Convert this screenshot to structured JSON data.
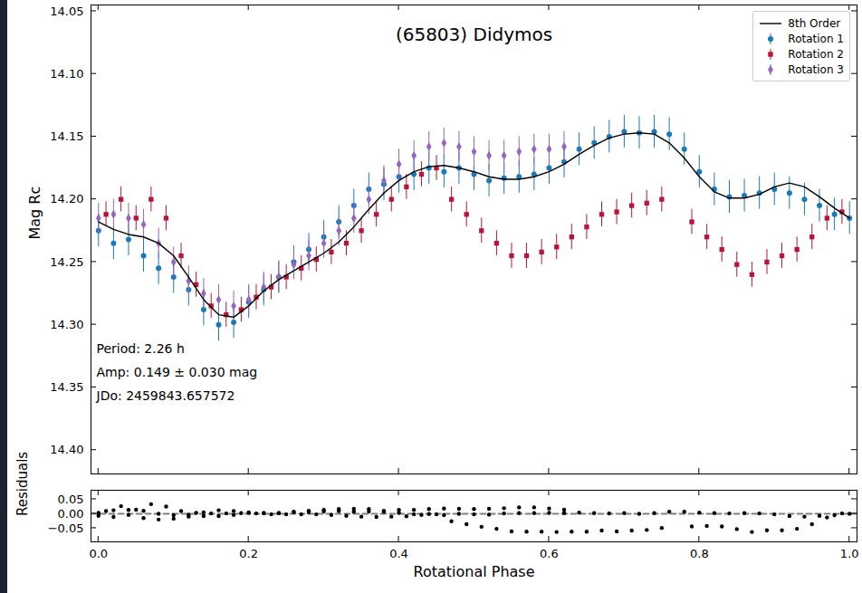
{
  "chart_data": [
    {
      "type": "scatter",
      "title": "(65803) Didymos",
      "ylabel": "Mag Rc",
      "xlim": [
        -0.01,
        1.01
      ],
      "ylim": [
        14.419,
        14.045
      ],
      "xticks": [
        {
          "value": 0,
          "label": "0.0"
        },
        0.2,
        0.4,
        0.6,
        0.8,
        {
          "value": 1,
          "label": "1.0"
        }
      ],
      "yticks": [
        14.05,
        {
          "value": 14.1,
          "label": "14.10"
        },
        14.15,
        {
          "value": 14.2,
          "label": "14.20"
        },
        14.25,
        {
          "value": 14.3,
          "label": "14.30"
        },
        14.35,
        {
          "value": 14.4,
          "label": "14.40"
        }
      ],
      "tick_labels": "y",
      "grid": false,
      "legend": "upper right",
      "annotations": [
        "Period: 2.26 h",
        "Amp: 0.149 ± 0.030 mag",
        "JDo: 2459843.657572"
      ],
      "series": [
        {
          "name": "8th Order",
          "type": "line",
          "line_style": "solid",
          "color": "#000000",
          "x": [
            0,
            0.02,
            0.04,
            0.06,
            0.08,
            0.1,
            0.12,
            0.14,
            0.16,
            0.18,
            0.2,
            0.22,
            0.24,
            0.26,
            0.28,
            0.3,
            0.32,
            0.34,
            0.36,
            0.38,
            0.4,
            0.42,
            0.44,
            0.46,
            0.48,
            0.5,
            0.52,
            0.54,
            0.56,
            0.58,
            0.6,
            0.62,
            0.64,
            0.66,
            0.68,
            0.7,
            0.72,
            0.74,
            0.76,
            0.78,
            0.8,
            0.82,
            0.84,
            0.86,
            0.88,
            0.9,
            0.92,
            0.94,
            0.96,
            0.98,
            1
          ],
          "values": [
            14.218,
            14.224,
            14.228,
            14.23,
            14.235,
            14.245,
            14.262,
            14.28,
            14.292,
            14.294,
            14.285,
            14.273,
            14.264,
            14.257,
            14.25,
            14.243,
            14.234,
            14.222,
            14.208,
            14.195,
            14.185,
            14.178,
            14.174,
            14.173,
            14.175,
            14.178,
            14.182,
            14.184,
            14.184,
            14.182,
            14.178,
            14.172,
            14.164,
            14.157,
            14.151,
            14.148,
            14.147,
            14.148,
            14.155,
            14.167,
            14.182,
            14.194,
            14.199,
            14.199,
            14.196,
            14.19,
            14.187,
            14.19,
            14.198,
            14.207,
            14.215
          ]
        },
        {
          "name": "Rotation 1",
          "type": "scatter",
          "marker": "circle",
          "color": "#1f77b4",
          "error": 0.013,
          "x": [
            0,
            0.02,
            0.04,
            0.06,
            0.08,
            0.1,
            0.12,
            0.14,
            0.16,
            0.18,
            0.2,
            0.22,
            0.24,
            0.26,
            0.28,
            0.3,
            0.32,
            0.34,
            0.36,
            0.38,
            0.4,
            0.42,
            0.44,
            0.46,
            0.48,
            0.5,
            0.52,
            0.54,
            0.56,
            0.58,
            0.6,
            0.62,
            0.64,
            0.66,
            0.68,
            0.7,
            0.72,
            0.74,
            0.76,
            0.78,
            0.8,
            0.82,
            0.84,
            0.86,
            0.88,
            0.9,
            0.92,
            0.94,
            0.96,
            0.98,
            1
          ],
          "values": [
            14.225,
            14.235,
            14.232,
            14.245,
            14.255,
            14.262,
            14.272,
            14.288,
            14.3,
            14.298,
            14.282,
            14.272,
            14.262,
            14.25,
            14.24,
            14.23,
            14.218,
            14.205,
            14.192,
            14.188,
            14.182,
            14.18,
            14.175,
            14.178,
            14.175,
            14.18,
            14.185,
            14.183,
            14.182,
            14.18,
            14.175,
            14.17,
            14.16,
            14.155,
            14.15,
            14.146,
            14.147,
            14.146,
            14.148,
            14.16,
            14.178,
            14.192,
            14.198,
            14.197,
            14.195,
            14.192,
            14.195,
            14.2,
            14.205,
            14.212,
            14.215
          ]
        },
        {
          "name": "Rotation 2",
          "type": "scatter",
          "marker": "square",
          "color": "#b5173c",
          "error": 0.01,
          "x": [
            0.01,
            0.03,
            0.05,
            0.07,
            0.09,
            0.11,
            0.13,
            0.15,
            0.17,
            0.19,
            0.21,
            0.23,
            0.25,
            0.27,
            0.29,
            0.31,
            0.33,
            0.35,
            0.37,
            0.39,
            0.41,
            0.43,
            0.45,
            0.47,
            0.49,
            0.51,
            0.53,
            0.55,
            0.57,
            0.59,
            0.61,
            0.63,
            0.65,
            0.67,
            0.69,
            0.71,
            0.73,
            0.75,
            0.79,
            0.81,
            0.83,
            0.85,
            0.87,
            0.89,
            0.91,
            0.93,
            0.95,
            0.97,
            0.99
          ],
          "values": [
            14.212,
            14.2,
            14.215,
            14.2,
            14.215,
            14.245,
            14.268,
            14.285,
            14.292,
            14.288,
            14.278,
            14.27,
            14.262,
            14.255,
            14.248,
            14.242,
            14.235,
            14.225,
            14.212,
            14.2,
            14.19,
            14.18,
            14.175,
            14.2,
            14.212,
            14.225,
            14.235,
            14.245,
            14.245,
            14.242,
            14.238,
            14.23,
            14.222,
            14.212,
            14.21,
            14.205,
            14.203,
            14.2,
            14.218,
            14.23,
            14.24,
            14.252,
            14.26,
            14.25,
            14.245,
            14.24,
            14.23,
            14.215,
            14.21
          ]
        },
        {
          "name": "Rotation 3",
          "type": "scatter",
          "marker": "diamond",
          "color": "#9467bd",
          "error": 0.012,
          "x": [
            0,
            0.02,
            0.04,
            0.06,
            0.08,
            0.1,
            0.12,
            0.14,
            0.16,
            0.18,
            0.2,
            0.22,
            0.24,
            0.26,
            0.28,
            0.3,
            0.32,
            0.34,
            0.36,
            0.38,
            0.4,
            0.42,
            0.44,
            0.46,
            0.48,
            0.5,
            0.52,
            0.54,
            0.56,
            0.58,
            0.6,
            0.62
          ],
          "values": [
            14.215,
            14.212,
            14.215,
            14.22,
            14.235,
            14.25,
            14.265,
            14.275,
            14.28,
            14.285,
            14.28,
            14.27,
            14.262,
            14.252,
            14.245,
            14.235,
            14.225,
            14.215,
            14.2,
            14.185,
            14.172,
            14.165,
            14.158,
            14.155,
            14.158,
            14.162,
            14.165,
            14.165,
            14.162,
            14.16,
            14.16,
            14.158
          ]
        }
      ]
    },
    {
      "type": "scatter",
      "xlabel": "Rotational Phase",
      "ylabel": "Residuals",
      "xlim": [
        -0.01,
        1.01
      ],
      "ylim": [
        -0.097,
        0.081
      ],
      "xticks": [
        {
          "value": 0,
          "label": "0.0"
        },
        0.2,
        0.4,
        0.6,
        0.8,
        {
          "value": 1,
          "label": "1.0"
        }
      ],
      "yticks": [
        {
          "value": -0.05,
          "label": "−0.05"
        },
        {
          "value": 0,
          "label": "0.00"
        },
        {
          "value": 0.05,
          "label": "0.05"
        }
      ],
      "grid": false,
      "series": [
        {
          "type": "scatter",
          "marker": "circle",
          "color": "#000000",
          "x": [
            0,
            0.02,
            0.04,
            0.06,
            0.08,
            0.1,
            0.12,
            0.14,
            0.16,
            0.18,
            0.2,
            0.22,
            0.24,
            0.26,
            0.28,
            0.3,
            0.32,
            0.34,
            0.36,
            0.38,
            0.4,
            0.42,
            0.44,
            0.46,
            0.48,
            0.5,
            0.52,
            0.54,
            0.56,
            0.58,
            0.6,
            0.62,
            0.64,
            0.66,
            0.68,
            0.7,
            0.72,
            0.74,
            0.76,
            0.78,
            0.8,
            0.82,
            0.84,
            0.86,
            0.88,
            0.9,
            0.92,
            0.94,
            0.96,
            0.98,
            1,
            0.01,
            0.03,
            0.05,
            0.07,
            0.09,
            0.11,
            0.13,
            0.15,
            0.17,
            0.19,
            0.21,
            0.23,
            0.25,
            0.27,
            0.29,
            0.31,
            0.33,
            0.35,
            0.37,
            0.39,
            0.41,
            0.43,
            0.45,
            0.47,
            0.49,
            0.51,
            0.53,
            0.55,
            0.57,
            0.59,
            0.61,
            0.63,
            0.65,
            0.67,
            0.69,
            0.71,
            0.73,
            0.75,
            0.79,
            0.81,
            0.83,
            0.85,
            0.87,
            0.89,
            0.91,
            0.93,
            0.95,
            0.97,
            0.99,
            0,
            0.02,
            0.04,
            0.06,
            0.08,
            0.1,
            0.12,
            0.14,
            0.16,
            0.18,
            0.2,
            0.22,
            0.24,
            0.26,
            0.28,
            0.3,
            0.32,
            0.34,
            0.36,
            0.38,
            0.4,
            0.42,
            0.44,
            0.46,
            0.48,
            0.5,
            0.52,
            0.54,
            0.56,
            0.58,
            0.6,
            0.62
          ],
          "values": [
            -0.007,
            -0.011,
            -0.004,
            -0.015,
            -0.02,
            -0.017,
            -0.01,
            -0.008,
            -0.008,
            -0.004,
            0.003,
            0.001,
            0.002,
            0.007,
            0.01,
            0.013,
            0.016,
            0.017,
            0.016,
            0.007,
            0.003,
            -0.002,
            -0.001,
            -0.005,
            0.0,
            -0.002,
            -0.003,
            0.001,
            0.002,
            0.002,
            0.003,
            0.002,
            0.004,
            0.002,
            0.001,
            0.002,
            0.0,
            0.002,
            0.007,
            0.007,
            0.004,
            0.002,
            0.001,
            0.002,
            0.001,
            -0.002,
            -0.008,
            -0.01,
            -0.007,
            -0.005,
            0.0,
            0.009,
            0.026,
            0.014,
            0.033,
            0.025,
            0.009,
            0.003,
            0.001,
            0.001,
            0.002,
            0.001,
            -0.002,
            -0.002,
            -0.002,
            -0.002,
            -0.004,
            -0.007,
            -0.01,
            -0.011,
            -0.01,
            -0.009,
            -0.004,
            -0.002,
            -0.026,
            -0.036,
            -0.045,
            -0.052,
            -0.061,
            -0.062,
            -0.062,
            -0.063,
            -0.062,
            -0.062,
            -0.058,
            -0.061,
            -0.058,
            -0.056,
            -0.049,
            -0.044,
            -0.042,
            -0.044,
            -0.053,
            -0.063,
            -0.057,
            -0.057,
            -0.052,
            -0.036,
            -0.013,
            0.001,
            0.003,
            0.012,
            0.013,
            0.01,
            0.0,
            -0.005,
            -0.003,
            0.005,
            0.012,
            0.009,
            0.005,
            0.003,
            0.002,
            0.005,
            0.005,
            0.008,
            0.009,
            0.007,
            0.008,
            0.01,
            0.013,
            0.013,
            0.016,
            0.018,
            0.017,
            0.016,
            0.017,
            0.019,
            0.022,
            0.022,
            0.018,
            0.014
          ]
        },
        {
          "type": "line",
          "line_style": "dashed",
          "color": "#808080",
          "x": [
            -0.01,
            1.01
          ],
          "values": [
            0,
            0
          ]
        }
      ]
    }
  ]
}
